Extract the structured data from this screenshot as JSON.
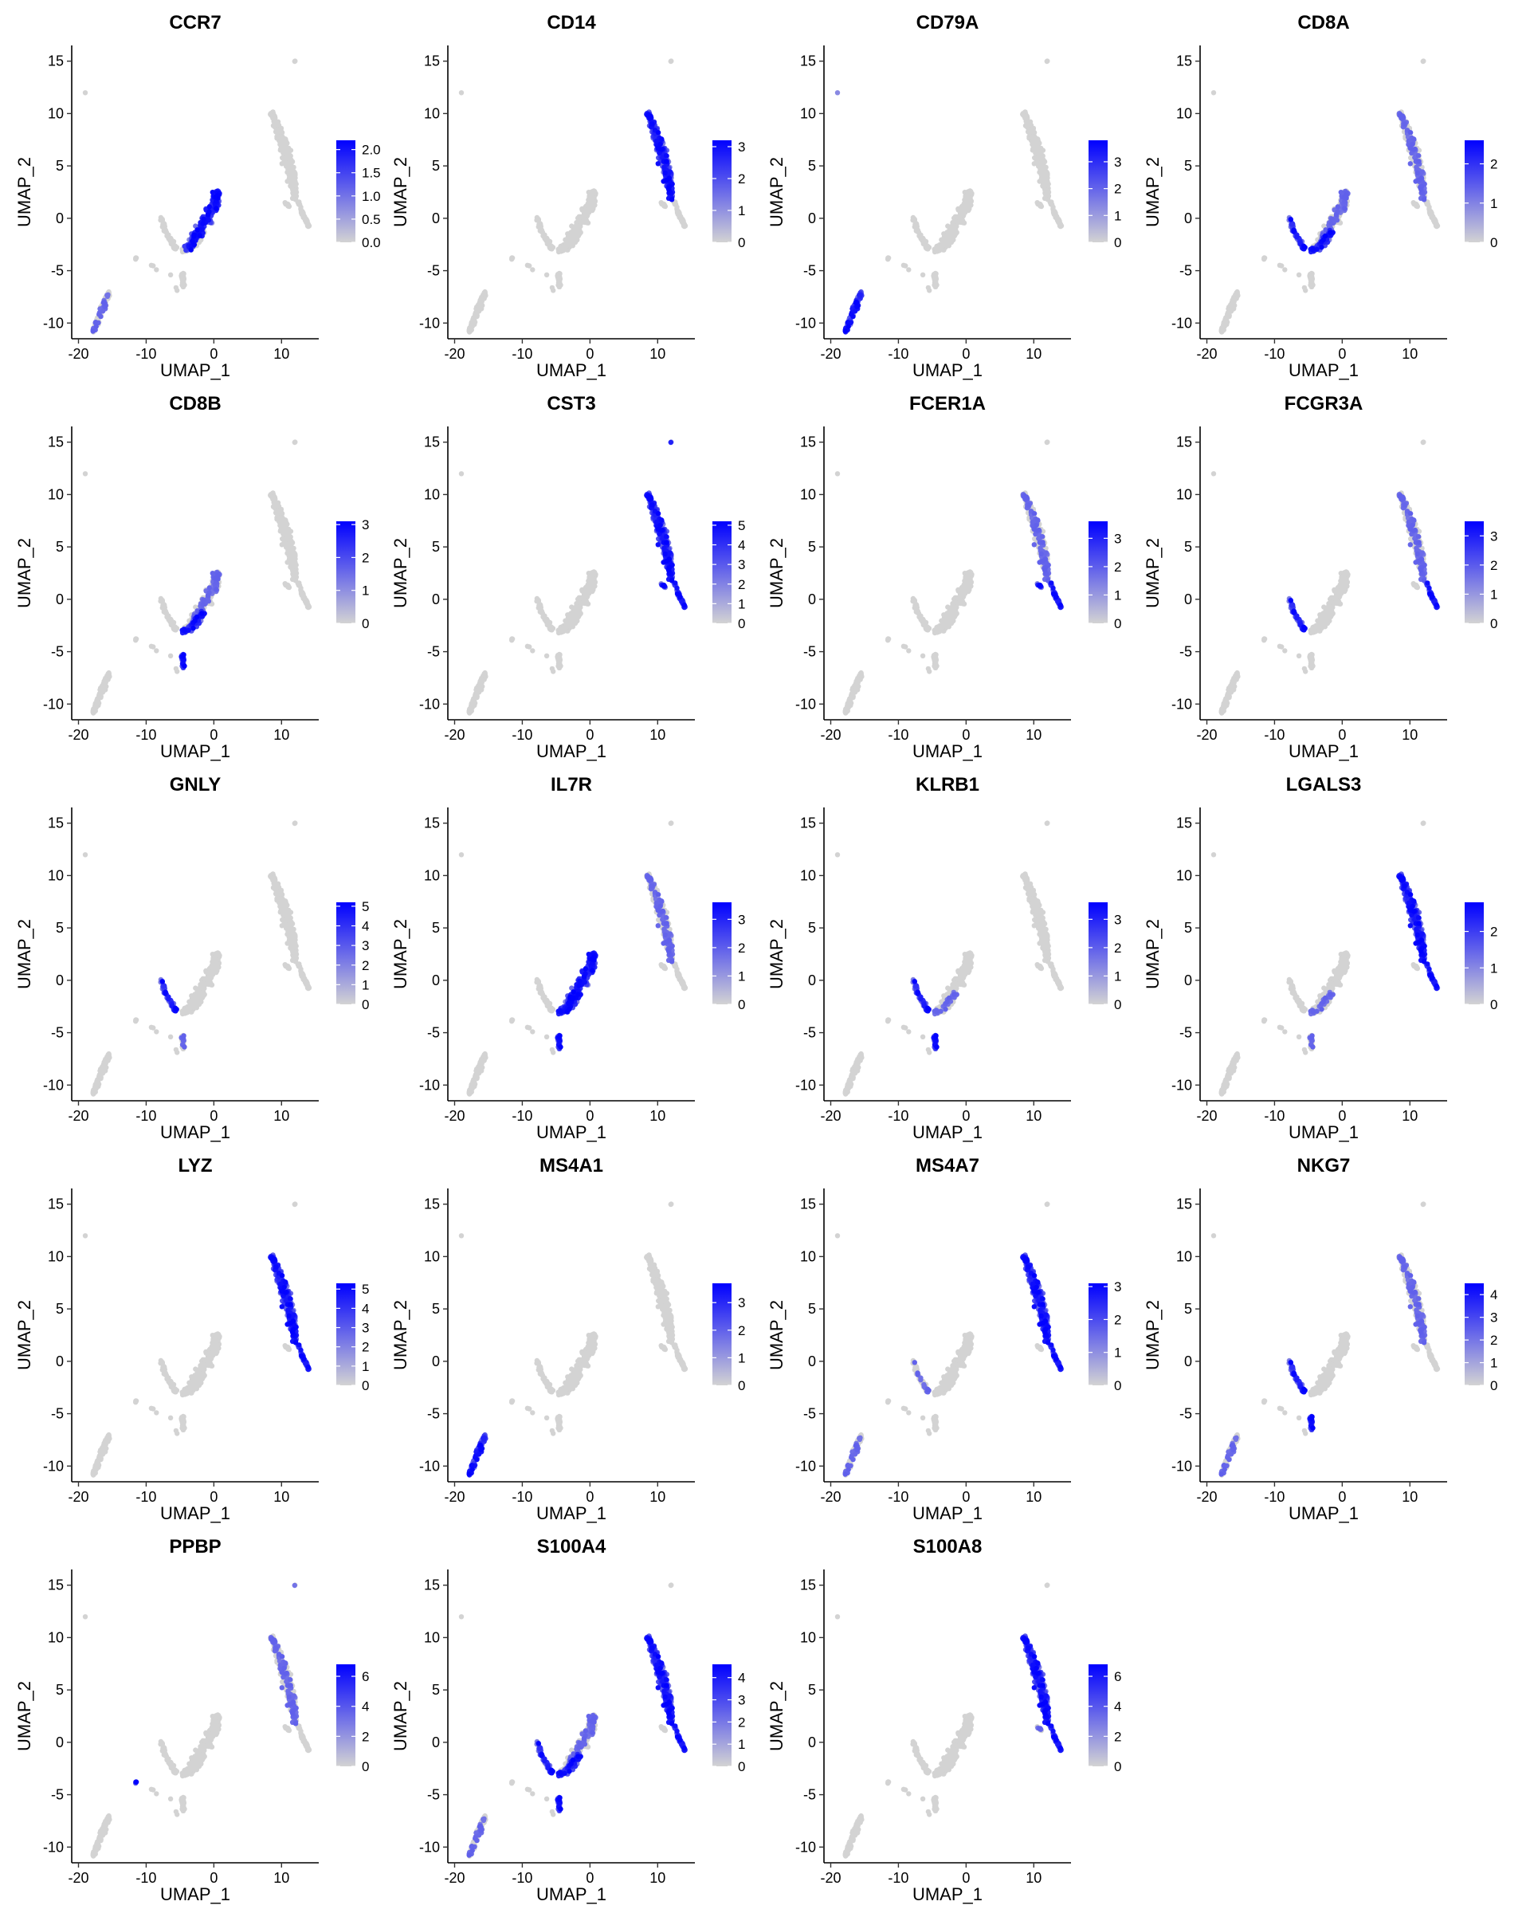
{
  "figure": {
    "xlabel": "UMAP_1",
    "ylabel": "UMAP_2",
    "xticks": [
      -20,
      -10,
      0,
      10
    ],
    "yticks": [
      15,
      10,
      5,
      0,
      -5,
      -10
    ],
    "xlim": [
      -21,
      15.5
    ],
    "ylim": [
      -11.5,
      16.5
    ],
    "background_point_color": "#d3d3d3",
    "low_color": "#d3d3d3",
    "high_color": "#0000ff"
  },
  "chart_data": [
    {
      "type": "scatter",
      "title": "CCR7",
      "colorbar_ticks": [
        "2.0",
        "1.5",
        "1.0",
        "0.5",
        "0.0"
      ],
      "colorbar_range": [
        0,
        2.2
      ],
      "expressing_regions": [
        "tcell_upper"
      ],
      "expressing_regions_light": [
        "bcell"
      ]
    },
    {
      "type": "scatter",
      "title": "CD14",
      "colorbar_ticks": [
        "3",
        "2",
        "1",
        "0"
      ],
      "colorbar_range": [
        0,
        3.2
      ],
      "expressing_regions": [
        "mono_main"
      ],
      "expressing_regions_light": []
    },
    {
      "type": "scatter",
      "title": "CD79A",
      "colorbar_ticks": [
        "3",
        "2",
        "1",
        "0"
      ],
      "colorbar_range": [
        0,
        3.8
      ],
      "expressing_regions": [
        "bcell",
        "outlier_left"
      ],
      "expressing_regions_light": []
    },
    {
      "type": "scatter",
      "title": "CD8A",
      "colorbar_ticks": [
        "2",
        "1",
        "0"
      ],
      "colorbar_range": [
        0,
        2.6
      ],
      "expressing_regions": [
        "nk_arm",
        "tcell_lower_right"
      ],
      "expressing_regions_light": [
        "tcell_upper",
        "mono_main"
      ]
    },
    {
      "type": "scatter",
      "title": "CD8B",
      "colorbar_ticks": [
        "3",
        "2",
        "1",
        "0"
      ],
      "colorbar_range": [
        0,
        3.1
      ],
      "expressing_regions": [
        "tcell_lower_right",
        "nk_bottom"
      ],
      "expressing_regions_light": [
        "tcell_upper"
      ]
    },
    {
      "type": "scatter",
      "title": "CST3",
      "colorbar_ticks": [
        "5",
        "4",
        "3",
        "2",
        "1",
        "0"
      ],
      "colorbar_range": [
        0,
        5.2
      ],
      "expressing_regions": [
        "mono_main",
        "mono_tail",
        "mono_top",
        "dc_small"
      ],
      "expressing_regions_light": []
    },
    {
      "type": "scatter",
      "title": "FCER1A",
      "colorbar_ticks": [
        "3",
        "2",
        "1",
        "0"
      ],
      "colorbar_range": [
        0,
        3.6
      ],
      "expressing_regions": [
        "mono_tail",
        "dc_small"
      ],
      "expressing_regions_light": [
        "mono_main"
      ]
    },
    {
      "type": "scatter",
      "title": "FCGR3A",
      "colorbar_ticks": [
        "3",
        "2",
        "1",
        "0"
      ],
      "colorbar_range": [
        0,
        3.5
      ],
      "expressing_regions": [
        "mono_tail",
        "nk_arm"
      ],
      "expressing_regions_light": [
        "mono_main"
      ]
    },
    {
      "type": "scatter",
      "title": "GNLY",
      "colorbar_ticks": [
        "5",
        "4",
        "3",
        "2",
        "1",
        "0"
      ],
      "colorbar_range": [
        0,
        5.2
      ],
      "expressing_regions": [
        "nk_arm"
      ],
      "expressing_regions_light": [
        "nk_bottom"
      ]
    },
    {
      "type": "scatter",
      "title": "IL7R",
      "colorbar_ticks": [
        "3",
        "2",
        "1",
        "0"
      ],
      "colorbar_range": [
        0,
        3.6
      ],
      "expressing_regions": [
        "tcell_upper",
        "tcell_lower_right",
        "nk_bottom"
      ],
      "expressing_regions_light": [
        "mono_main"
      ]
    },
    {
      "type": "scatter",
      "title": "KLRB1",
      "colorbar_ticks": [
        "3",
        "2",
        "1",
        "0"
      ],
      "colorbar_range": [
        0,
        3.6
      ],
      "expressing_regions": [
        "nk_arm",
        "nk_bottom"
      ],
      "expressing_regions_light": [
        "tcell_lower_right"
      ]
    },
    {
      "type": "scatter",
      "title": "LGALS3",
      "colorbar_ticks": [
        "2",
        "1",
        "0"
      ],
      "colorbar_range": [
        0,
        2.8
      ],
      "expressing_regions": [
        "mono_main",
        "mono_tail"
      ],
      "expressing_regions_light": [
        "tcell_lower_right",
        "nk_bottom"
      ]
    },
    {
      "type": "scatter",
      "title": "LYZ",
      "colorbar_ticks": [
        "5",
        "4",
        "3",
        "2",
        "1",
        "0"
      ],
      "colorbar_range": [
        0,
        5.3
      ],
      "expressing_regions": [
        "mono_main",
        "mono_tail"
      ],
      "expressing_regions_light": []
    },
    {
      "type": "scatter",
      "title": "MS4A1",
      "colorbar_ticks": [
        "3",
        "2",
        "1",
        "0"
      ],
      "colorbar_range": [
        0,
        3.7
      ],
      "expressing_regions": [
        "bcell"
      ],
      "expressing_regions_light": []
    },
    {
      "type": "scatter",
      "title": "MS4A7",
      "colorbar_ticks": [
        "3",
        "2",
        "1",
        "0"
      ],
      "colorbar_range": [
        0,
        3.1
      ],
      "expressing_regions": [
        "mono_main",
        "mono_tail"
      ],
      "expressing_regions_light": [
        "nk_arm",
        "bcell"
      ]
    },
    {
      "type": "scatter",
      "title": "NKG7",
      "colorbar_ticks": [
        "4",
        "3",
        "2",
        "1",
        "0"
      ],
      "colorbar_range": [
        0,
        4.5
      ],
      "expressing_regions": [
        "nk_arm",
        "nk_bottom"
      ],
      "expressing_regions_light": [
        "mono_main",
        "bcell"
      ]
    },
    {
      "type": "scatter",
      "title": "PPBP",
      "colorbar_ticks": [
        "6",
        "4",
        "2",
        "0"
      ],
      "colorbar_range": [
        0,
        6.8
      ],
      "expressing_regions": [
        "platelet"
      ],
      "expressing_regions_light": [
        "mono_main",
        "mono_top"
      ]
    },
    {
      "type": "scatter",
      "title": "S100A4",
      "colorbar_ticks": [
        "4",
        "3",
        "2",
        "1",
        "0"
      ],
      "colorbar_range": [
        0,
        4.6
      ],
      "expressing_regions": [
        "mono_main",
        "mono_tail",
        "nk_arm",
        "nk_bottom",
        "tcell_lower_right"
      ],
      "expressing_regions_light": [
        "tcell_upper",
        "bcell"
      ]
    },
    {
      "type": "scatter",
      "title": "S100A8",
      "colorbar_ticks": [
        "6",
        "4",
        "2",
        "0"
      ],
      "colorbar_range": [
        0,
        6.8
      ],
      "expressing_regions": [
        "mono_main",
        "mono_tail"
      ],
      "expressing_regions_light": [
        "dc_small"
      ]
    }
  ]
}
